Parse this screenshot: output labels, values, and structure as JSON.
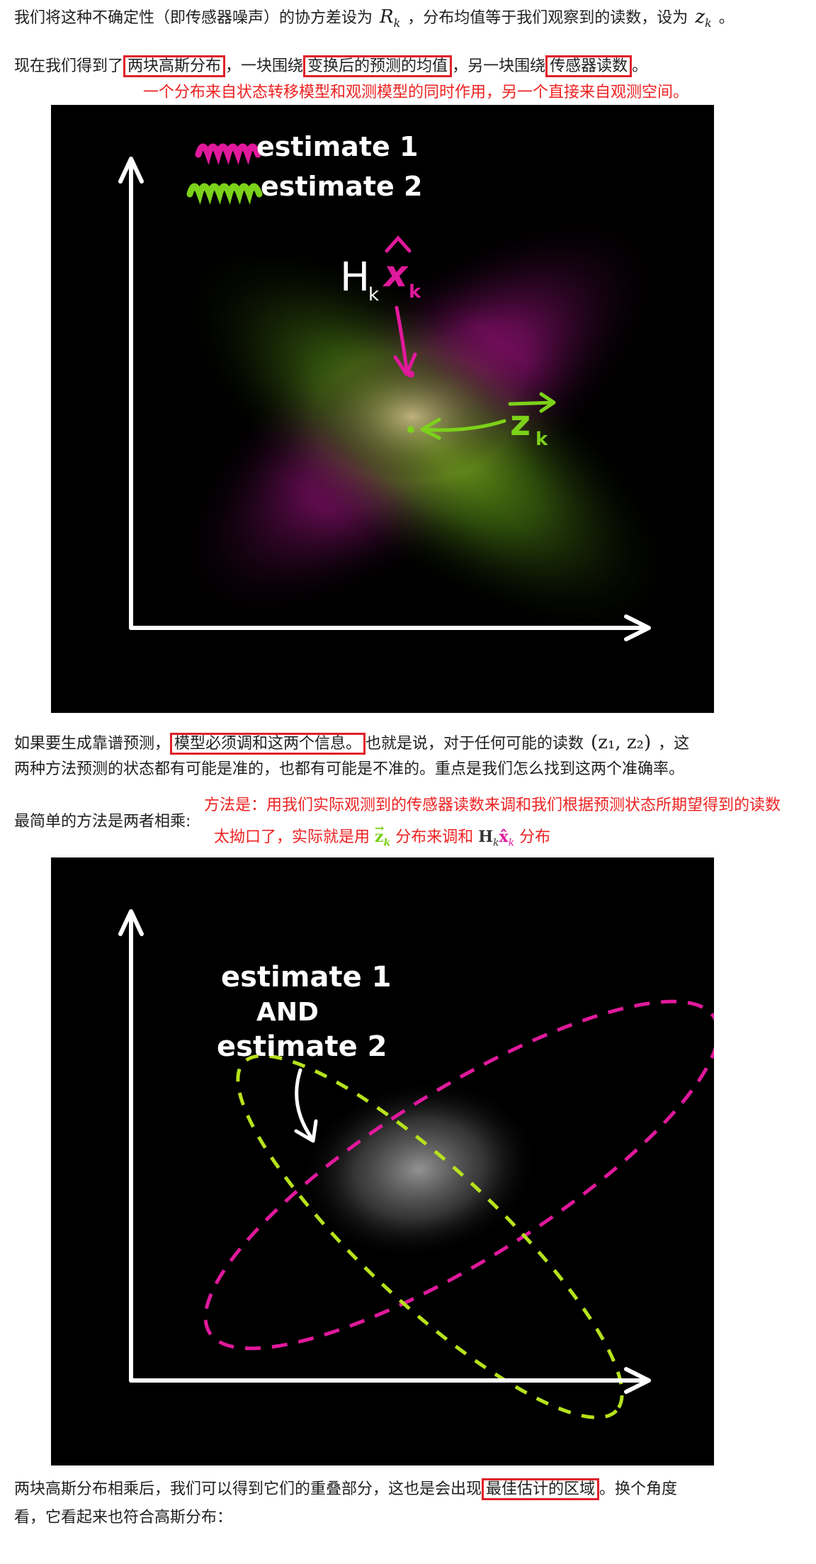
{
  "para1": {
    "before": "我们将这种不确定性（即传感器噪声）的协方差设为",
    "r_symbol": "R",
    "r_sub": "k",
    "middle": "，分布均值等于我们观察到的读数，设为",
    "z_symbol": "z",
    "z_sub": "k",
    "end": "。"
  },
  "para2": {
    "t1": "现在我们得到了",
    "b1": "两块高斯分布",
    "t2": "，一块围绕",
    "b2": "变换后的预测的均值",
    "t3": "，另一块围绕",
    "b3": "传感器读数",
    "t4": "。"
  },
  "note1": "一个分布来自状态转移模型和观测模型的同时作用，另一个直接来自观测空间。",
  "figure1": {
    "legend1": "estimate 1",
    "legend2": "estimate 2",
    "label_h": "H",
    "label_h_sub": "k",
    "label_x": "x",
    "label_x_sub": "k",
    "label_z": "z",
    "label_z_sub": "k",
    "magenta": "#e0199c",
    "green": "#7cd11a"
  },
  "para3": {
    "t1": "如果要生成靠谱预测，",
    "b1": "模型必须调和这两个信息。",
    "t2": "也就是说，对于任何可能的读数",
    "pair": "(z₁, z₂)",
    "t3": "，这",
    "line2": "两种方法预测的状态都有可能是准的，也都有可能是不准的。重点是我们怎么找到这两个准确率。"
  },
  "para4": "最简单的方法是两者相乘:",
  "note2": "方法是：用我们实际观测到的传感器读数来调和我们根据预测状态所期望得到的读数",
  "note3": {
    "t1": "太拗口了，实际就是用",
    "z": "z",
    "z_sub": "k",
    "t2": "分布来调和",
    "h": "H",
    "h_sub": "k",
    "x": "x",
    "x_sub": "k",
    "t3": "分布"
  },
  "figure2": {
    "line1": "estimate 1",
    "line2": "AND",
    "line3": "estimate 2",
    "magenta": "#e0199c",
    "green": "#b6e21c"
  },
  "para5": {
    "t1": "两块高斯分布相乘后，我们可以得到它们的重叠部分，这也是会出现",
    "b1": "最佳估计的区域",
    "t2": "。换个角度",
    "line2": "看，它看起来也符合高斯分布："
  }
}
